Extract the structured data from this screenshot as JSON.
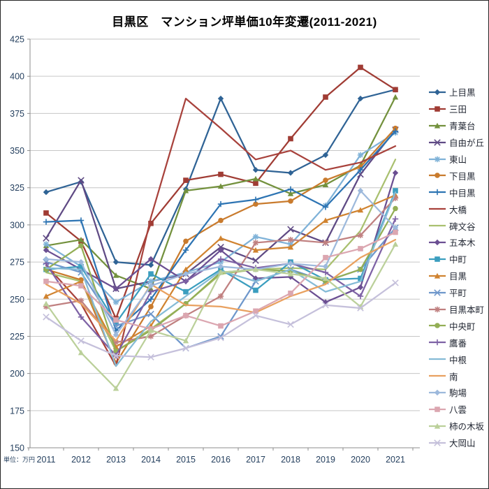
{
  "chart_data": {
    "type": "line",
    "title": "目黒区　マンション坪単価10年変遷(2011-2021)",
    "unit_label": "単位：万円",
    "x": [
      2011,
      2012,
      2013,
      2014,
      2015,
      2016,
      2017,
      2018,
      2019,
      2020,
      2021
    ],
    "xlabel": "",
    "ylabel": "",
    "ylim": [
      150,
      425
    ],
    "ytick_step": 25,
    "grid": "horizontal",
    "legend_position": "right",
    "series": [
      {
        "name": "上目黒",
        "color": "#2F6395",
        "marker": "diamond",
        "values": [
          322,
          329,
          275,
          273,
          324,
          385,
          337,
          335,
          347,
          385,
          391
        ]
      },
      {
        "name": "三田",
        "color": "#A03C34",
        "marker": "square",
        "values": [
          308,
          289,
          237,
          301,
          330,
          334,
          328,
          358,
          386,
          406,
          391
        ]
      },
      {
        "name": "青葉台",
        "color": "#73913D",
        "marker": "triangle",
        "values": [
          286,
          290,
          266,
          257,
          323,
          326,
          331,
          321,
          327,
          340,
          386
        ]
      },
      {
        "name": "自由が丘",
        "color": "#5F4A84",
        "marker": "x",
        "values": [
          291,
          330,
          257,
          262,
          267,
          285,
          276,
          297,
          288,
          334,
          364
        ]
      },
      {
        "name": "東山",
        "color": "#7FB2D8",
        "marker": "asterisk",
        "values": [
          287,
          272,
          248,
          262,
          268,
          275,
          292,
          287,
          313,
          347,
          362
        ]
      },
      {
        "name": "下目黒",
        "color": "#C97B2D",
        "marker": "circle",
        "values": [
          270,
          263,
          207,
          245,
          289,
          303,
          314,
          316,
          330,
          339,
          365
        ]
      },
      {
        "name": "中目黒",
        "color": "#2D74B3",
        "marker": "plus",
        "values": [
          302,
          303,
          229,
          250,
          283,
          314,
          317,
          324,
          312,
          337,
          363
        ]
      },
      {
        "name": "大橋",
        "color": "#A8423C",
        "marker": "none",
        "values": [
          273,
          247,
          205,
          305,
          385,
          365,
          344,
          350,
          337,
          342,
          353
        ]
      },
      {
        "name": "碑文谷",
        "color": "#A9C06F",
        "marker": "none",
        "values": [
          268,
          262,
          215,
          230,
          247,
          267,
          270,
          271,
          270,
          296,
          344
        ]
      },
      {
        "name": "五本木",
        "color": "#6B4F92",
        "marker": "diamond",
        "values": [
          283,
          270,
          257,
          277,
          262,
          283,
          264,
          265,
          248,
          258,
          335
        ]
      },
      {
        "name": "中町",
        "color": "#3B9EBF",
        "marker": "square",
        "values": [
          270,
          272,
          234,
          267,
          255,
          270,
          256,
          275,
          263,
          264,
          323
        ]
      },
      {
        "name": "目黒",
        "color": "#D08330",
        "marker": "triangle",
        "values": [
          252,
          262,
          218,
          232,
          270,
          291,
          283,
          285,
          303,
          310,
          320
        ]
      },
      {
        "name": "平町",
        "color": "#6E97CB",
        "marker": "x",
        "values": [
          275,
          268,
          232,
          240,
          217,
          225,
          262,
          270,
          262,
          270,
          298
        ]
      },
      {
        "name": "目黒本町",
        "color": "#C08080",
        "marker": "asterisk",
        "values": [
          245,
          249,
          221,
          225,
          239,
          252,
          288,
          290,
          288,
          293,
          318
        ]
      },
      {
        "name": "中央町",
        "color": "#93AE55",
        "marker": "circle",
        "values": [
          270,
          286,
          215,
          229,
          247,
          268,
          270,
          269,
          262,
          270,
          311
        ]
      },
      {
        "name": "鷹番",
        "color": "#7E62A5",
        "marker": "plus",
        "values": [
          274,
          238,
          212,
          255,
          262,
          277,
          271,
          274,
          268,
          252,
          304
        ]
      },
      {
        "name": "中根",
        "color": "#85BBD6",
        "marker": "none",
        "values": [
          271,
          270,
          205,
          235,
          252,
          269,
          262,
          270,
          255,
          262,
          322
        ]
      },
      {
        "name": "南",
        "color": "#E9A160",
        "marker": "none",
        "values": [
          260,
          247,
          222,
          260,
          246,
          245,
          241,
          252,
          260,
          278,
          290
        ]
      },
      {
        "name": "駒場",
        "color": "#9DB9DC",
        "marker": "diamond",
        "values": [
          277,
          275,
          226,
          259,
          267,
          272,
          270,
          274,
          272,
          323,
          298
        ]
      },
      {
        "name": "八雲",
        "color": "#DBA6B0",
        "marker": "square",
        "values": [
          262,
          259,
          236,
          230,
          239,
          232,
          242,
          254,
          278,
          284,
          295
        ]
      },
      {
        "name": "柿の木坂",
        "color": "#BBD09A",
        "marker": "triangle",
        "values": [
          247,
          214,
          190,
          229,
          222,
          268,
          270,
          267,
          264,
          245,
          287
        ]
      },
      {
        "name": "大岡山",
        "color": "#C5C0DB",
        "marker": "x",
        "values": [
          238,
          222,
          212,
          211,
          217,
          224,
          239,
          233,
          246,
          244,
          261
        ]
      }
    ]
  },
  "style_colors": {
    "grid": "#C6C6C6",
    "axis": "#8C8C8C",
    "tick_label": "#243F5E",
    "title_color": "#000000"
  }
}
